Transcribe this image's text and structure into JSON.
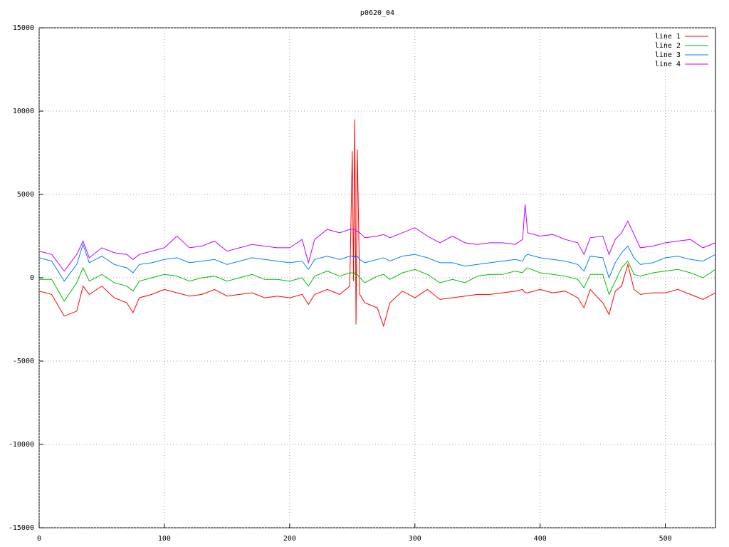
{
  "chart_data": {
    "type": "line",
    "title": "p0620_04",
    "x": [
      0,
      10,
      20,
      30,
      35,
      40,
      50,
      60,
      70,
      75,
      80,
      90,
      100,
      110,
      120,
      130,
      140,
      150,
      160,
      170,
      180,
      190,
      200,
      210,
      215,
      220,
      230,
      240,
      248,
      250,
      251,
      252,
      253,
      254,
      256,
      260,
      270,
      275,
      280,
      290,
      300,
      310,
      320,
      330,
      340,
      350,
      360,
      370,
      380,
      386,
      388,
      390,
      400,
      410,
      420,
      430,
      435,
      440,
      450,
      455,
      460,
      465,
      470,
      475,
      480,
      490,
      500,
      510,
      520,
      530,
      540
    ],
    "series": [
      {
        "name": "line 1",
        "color": "#ff0000",
        "values": [
          -800,
          -1000,
          -2300,
          -2000,
          -500,
          -1000,
          -500,
          -1200,
          -1500,
          -2100,
          -1200,
          -1000,
          -700,
          -900,
          -1100,
          -1000,
          -700,
          -1100,
          -1000,
          -900,
          -1200,
          -1100,
          -1200,
          -1000,
          -1600,
          -1000,
          -700,
          -1000,
          -500,
          7600,
          -200,
          9500,
          -2800,
          7700,
          -1000,
          -1500,
          -1800,
          -2900,
          -1500,
          -800,
          -1200,
          -700,
          -1300,
          -1200,
          -1100,
          -1000,
          -1000,
          -900,
          -800,
          -700,
          -900,
          -900,
          -700,
          -900,
          -800,
          -1200,
          -1800,
          -700,
          -1500,
          -2200,
          -800,
          -500,
          800,
          -700,
          -1000,
          -900,
          -900,
          -700,
          -1000,
          -1300,
          -900
        ]
      },
      {
        "name": "line 2",
        "color": "#00c000",
        "values": [
          -100,
          -100,
          -1400,
          -300,
          600,
          -200,
          200,
          -300,
          -500,
          -800,
          -200,
          0,
          200,
          100,
          -200,
          0,
          100,
          -200,
          0,
          200,
          -100,
          -100,
          -200,
          0,
          -500,
          100,
          400,
          100,
          300,
          300,
          200,
          300,
          100,
          200,
          0,
          -300,
          100,
          200,
          -100,
          300,
          500,
          200,
          -300,
          -100,
          -300,
          100,
          200,
          200,
          400,
          300,
          500,
          600,
          300,
          200,
          100,
          -100,
          -600,
          200,
          200,
          -1000,
          -200,
          600,
          1000,
          200,
          100,
          300,
          400,
          500,
          300,
          0,
          500
        ]
      },
      {
        "name": "line 3",
        "color": "#0080ff",
        "values": [
          1200,
          1000,
          -200,
          800,
          2000,
          900,
          1300,
          800,
          600,
          300,
          800,
          900,
          1100,
          1200,
          900,
          1000,
          1100,
          800,
          1000,
          1200,
          1100,
          1000,
          900,
          1000,
          500,
          1100,
          1300,
          1100,
          1300,
          1300,
          1200,
          1300,
          1100,
          1300,
          1100,
          900,
          1100,
          1200,
          1000,
          1300,
          1400,
          1200,
          900,
          900,
          700,
          800,
          900,
          1000,
          1100,
          1000,
          1300,
          1400,
          1200,
          1100,
          1000,
          800,
          400,
          1300,
          1200,
          0,
          900,
          1500,
          1900,
          1200,
          800,
          900,
          1200,
          1300,
          1100,
          1000,
          1400
        ]
      },
      {
        "name": "line 4",
        "color": "#c000ff",
        "values": [
          1600,
          1400,
          400,
          1400,
          2200,
          1200,
          1800,
          1500,
          1400,
          1100,
          1400,
          1600,
          1800,
          2500,
          1800,
          1900,
          2200,
          1600,
          1800,
          2000,
          1900,
          1800,
          1800,
          2300,
          900,
          2300,
          2900,
          2700,
          2900,
          2900,
          2900,
          2900,
          2800,
          2800,
          2700,
          2400,
          2500,
          2600,
          2400,
          2700,
          3000,
          2500,
          2100,
          2500,
          2100,
          2000,
          2100,
          2100,
          2000,
          2300,
          4400,
          2700,
          2500,
          2600,
          2300,
          2100,
          1400,
          2400,
          2500,
          1400,
          2300,
          2700,
          3400,
          2600,
          1800,
          1900,
          2100,
          2200,
          2300,
          1800,
          2100
        ]
      }
    ],
    "xlim": [
      0,
      540
    ],
    "xticks": [
      0,
      100,
      200,
      300,
      400,
      500
    ],
    "ylim": [
      -15000,
      15000
    ],
    "yticks": [
      -15000,
      -10000,
      -5000,
      0,
      5000,
      10000,
      15000
    ],
    "grid": true
  }
}
